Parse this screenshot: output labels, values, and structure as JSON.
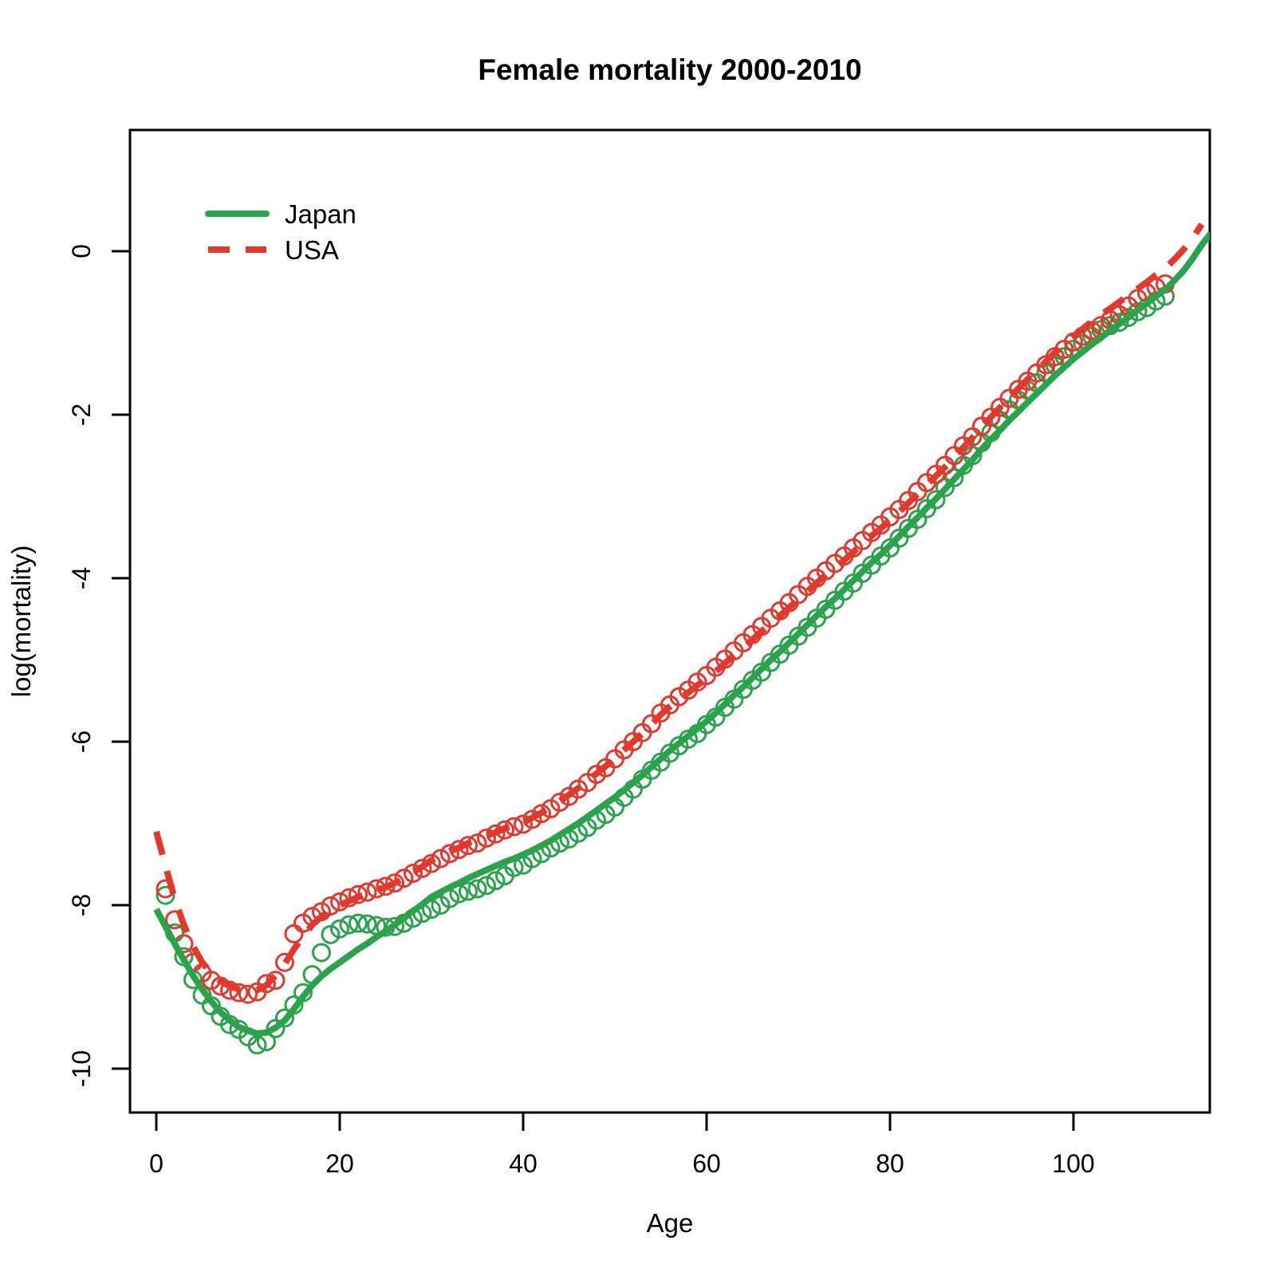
{
  "title": "Female mortality 2000-2010",
  "x_axis": {
    "label": "Age",
    "ticks": [
      0,
      20,
      40,
      60,
      80,
      100
    ]
  },
  "y_axis": {
    "label": "log(mortality)",
    "ticks": [
      0,
      -2,
      -4,
      -6,
      -8,
      -10
    ]
  },
  "legend": {
    "japan_label": "Japan",
    "usa_label": "USA"
  },
  "colors": {
    "japan": "#2BA24C",
    "usa": "#E2392E",
    "axis": "#000000",
    "background": "#ffffff"
  },
  "chart_data": {
    "type": "line",
    "title": "Female mortality 2000-2010",
    "xlabel": "Age",
    "ylabel": "log(mortality)",
    "xlim": [
      -2.9,
      115.1
    ],
    "ylim": [
      -10.54,
      1.48
    ],
    "grid": false,
    "legend_position": "top-left",
    "series": [
      {
        "name": "Japan",
        "color": "#2BA24C",
        "line_style": "solid",
        "marker": "circle-open",
        "smooth_line": {
          "start_age": 0,
          "step": 1,
          "values": [
            -8.05,
            -8.26,
            -8.47,
            -8.67,
            -8.86,
            -9.03,
            -9.18,
            -9.31,
            -9.41,
            -9.49,
            -9.54,
            -9.57,
            -9.56,
            -9.5,
            -9.41,
            -9.27,
            -9.12,
            -8.98,
            -8.87,
            -8.78,
            -8.7,
            -8.62,
            -8.54,
            -8.47,
            -8.39,
            -8.32,
            -8.24,
            -8.16,
            -8.07,
            -7.99,
            -7.9,
            -7.84,
            -7.78,
            -7.73,
            -7.67,
            -7.62,
            -7.57,
            -7.52,
            -7.47,
            -7.43,
            -7.38,
            -7.33,
            -7.27,
            -7.21,
            -7.14,
            -7.07,
            -7.0,
            -6.92,
            -6.84,
            -6.76,
            -6.68,
            -6.59,
            -6.5,
            -6.41,
            -6.31,
            -6.21,
            -6.11,
            -6.02,
            -5.93,
            -5.84,
            -5.75,
            -5.65,
            -5.54,
            -5.43,
            -5.33,
            -5.22,
            -5.11,
            -5.0,
            -4.9,
            -4.79,
            -4.68,
            -4.57,
            -4.46,
            -4.35,
            -4.25,
            -4.14,
            -4.03,
            -3.92,
            -3.81,
            -3.71,
            -3.6,
            -3.49,
            -3.37,
            -3.26,
            -3.14,
            -3.03,
            -2.91,
            -2.79,
            -2.67,
            -2.55,
            -2.42,
            -2.3,
            -2.19,
            -2.07,
            -1.96,
            -1.85,
            -1.74,
            -1.63,
            -1.52,
            -1.42,
            -1.32,
            -1.23,
            -1.14,
            -1.06,
            -0.97,
            -0.89,
            -0.81,
            -0.72,
            -0.64,
            -0.55,
            -0.47,
            -0.36,
            -0.24,
            -0.09,
            0.08,
            0.22
          ]
        },
        "observed_points": {
          "start_age": 1,
          "step": 1,
          "values": [
            -7.88,
            -8.34,
            -8.63,
            -8.91,
            -9.1,
            -9.23,
            -9.36,
            -9.46,
            -9.52,
            -9.61,
            -9.71,
            -9.67,
            -9.51,
            -9.38,
            -9.22,
            -9.07,
            -8.85,
            -8.58,
            -8.36,
            -8.29,
            -8.24,
            -8.22,
            -8.23,
            -8.25,
            -8.27,
            -8.26,
            -8.22,
            -8.16,
            -8.1,
            -8.05,
            -8.0,
            -7.92,
            -7.86,
            -7.83,
            -7.8,
            -7.76,
            -7.7,
            -7.64,
            -7.54,
            -7.51,
            -7.43,
            -7.37,
            -7.3,
            -7.24,
            -7.19,
            -7.12,
            -7.05,
            -6.96,
            -6.89,
            -6.8,
            -6.68,
            -6.58,
            -6.46,
            -6.35,
            -6.25,
            -6.14,
            -6.05,
            -5.97,
            -5.9,
            -5.79,
            -5.7,
            -5.58,
            -5.48,
            -5.36,
            -5.25,
            -5.15,
            -5.03,
            -4.93,
            -4.82,
            -4.71,
            -4.6,
            -4.49,
            -4.38,
            -4.27,
            -4.16,
            -4.06,
            -3.94,
            -3.84,
            -3.73,
            -3.63,
            -3.51,
            -3.39,
            -3.28,
            -3.15,
            -3.04,
            -2.89,
            -2.77,
            -2.62,
            -2.5,
            -2.34,
            -2.22,
            -2.07,
            -1.94,
            -1.82,
            -1.7,
            -1.61,
            -1.49,
            -1.4,
            -1.29,
            -1.2,
            -1.13,
            -1.04,
            -0.96,
            -0.91,
            -0.87,
            -0.81,
            -0.74,
            -0.69,
            -0.61,
            -0.55
          ]
        }
      },
      {
        "name": "USA",
        "color": "#E2392E",
        "line_style": "dashed",
        "marker": "circle-open",
        "smooth_line": {
          "start_age": 0,
          "step": 1,
          "values": [
            -7.1,
            -7.52,
            -7.92,
            -8.24,
            -8.5,
            -8.7,
            -8.83,
            -8.93,
            -8.99,
            -9.03,
            -9.05,
            -9.04,
            -8.98,
            -8.86,
            -8.72,
            -8.54,
            -8.38,
            -8.24,
            -8.14,
            -8.06,
            -8.0,
            -7.95,
            -7.9,
            -7.86,
            -7.81,
            -7.78,
            -7.73,
            -7.67,
            -7.6,
            -7.53,
            -7.45,
            -7.4,
            -7.34,
            -7.3,
            -7.24,
            -7.2,
            -7.15,
            -7.11,
            -7.06,
            -7.03,
            -6.99,
            -6.93,
            -6.87,
            -6.8,
            -6.73,
            -6.65,
            -6.57,
            -6.48,
            -6.39,
            -6.3,
            -6.2,
            -6.1,
            -6.0,
            -5.9,
            -5.79,
            -5.67,
            -5.57,
            -5.48,
            -5.4,
            -5.31,
            -5.23,
            -5.14,
            -5.04,
            -4.94,
            -4.85,
            -4.75,
            -4.65,
            -4.55,
            -4.46,
            -4.36,
            -4.26,
            -4.16,
            -4.06,
            -3.96,
            -3.87,
            -3.78,
            -3.68,
            -3.58,
            -3.48,
            -3.39,
            -3.29,
            -3.19,
            -3.08,
            -2.97,
            -2.86,
            -2.75,
            -2.64,
            -2.52,
            -2.4,
            -2.28,
            -2.15,
            -2.03,
            -1.91,
            -1.79,
            -1.68,
            -1.57,
            -1.46,
            -1.35,
            -1.24,
            -1.14,
            -1.04,
            -0.95,
            -0.86,
            -0.78,
            -0.7,
            -0.62,
            -0.54,
            -0.46,
            -0.38,
            -0.29,
            -0.21,
            -0.1,
            0.02,
            0.16,
            0.33
          ]
        },
        "observed_points": {
          "start_age": 1,
          "step": 1,
          "values": [
            -7.8,
            -8.18,
            -8.47,
            -8.7,
            -8.83,
            -8.92,
            -8.99,
            -9.04,
            -9.07,
            -9.09,
            -9.06,
            -8.96,
            -8.92,
            -8.7,
            -8.35,
            -8.22,
            -8.14,
            -8.08,
            -8.01,
            -7.96,
            -7.91,
            -7.87,
            -7.84,
            -7.8,
            -7.77,
            -7.73,
            -7.67,
            -7.61,
            -7.55,
            -7.49,
            -7.43,
            -7.37,
            -7.32,
            -7.27,
            -7.24,
            -7.18,
            -7.13,
            -7.08,
            -7.04,
            -7.01,
            -6.95,
            -6.88,
            -6.82,
            -6.74,
            -6.67,
            -6.58,
            -6.5,
            -6.4,
            -6.32,
            -6.21,
            -6.1,
            -6.0,
            -5.89,
            -5.78,
            -5.65,
            -5.55,
            -5.45,
            -5.37,
            -5.27,
            -5.19,
            -5.09,
            -4.99,
            -4.89,
            -4.79,
            -4.69,
            -4.59,
            -4.49,
            -4.4,
            -4.3,
            -4.2,
            -4.1,
            -4.0,
            -3.91,
            -3.82,
            -3.73,
            -3.63,
            -3.54,
            -3.44,
            -3.35,
            -3.25,
            -3.16,
            -3.05,
            -2.94,
            -2.83,
            -2.73,
            -2.62,
            -2.5,
            -2.38,
            -2.27,
            -2.14,
            -2.03,
            -1.91,
            -1.8,
            -1.69,
            -1.59,
            -1.49,
            -1.39,
            -1.29,
            -1.2,
            -1.11,
            -1.04,
            -0.97,
            -0.91,
            -0.84,
            -0.78,
            -0.67,
            -0.58,
            -0.51,
            -0.44,
            -0.4
          ]
        }
      }
    ]
  }
}
